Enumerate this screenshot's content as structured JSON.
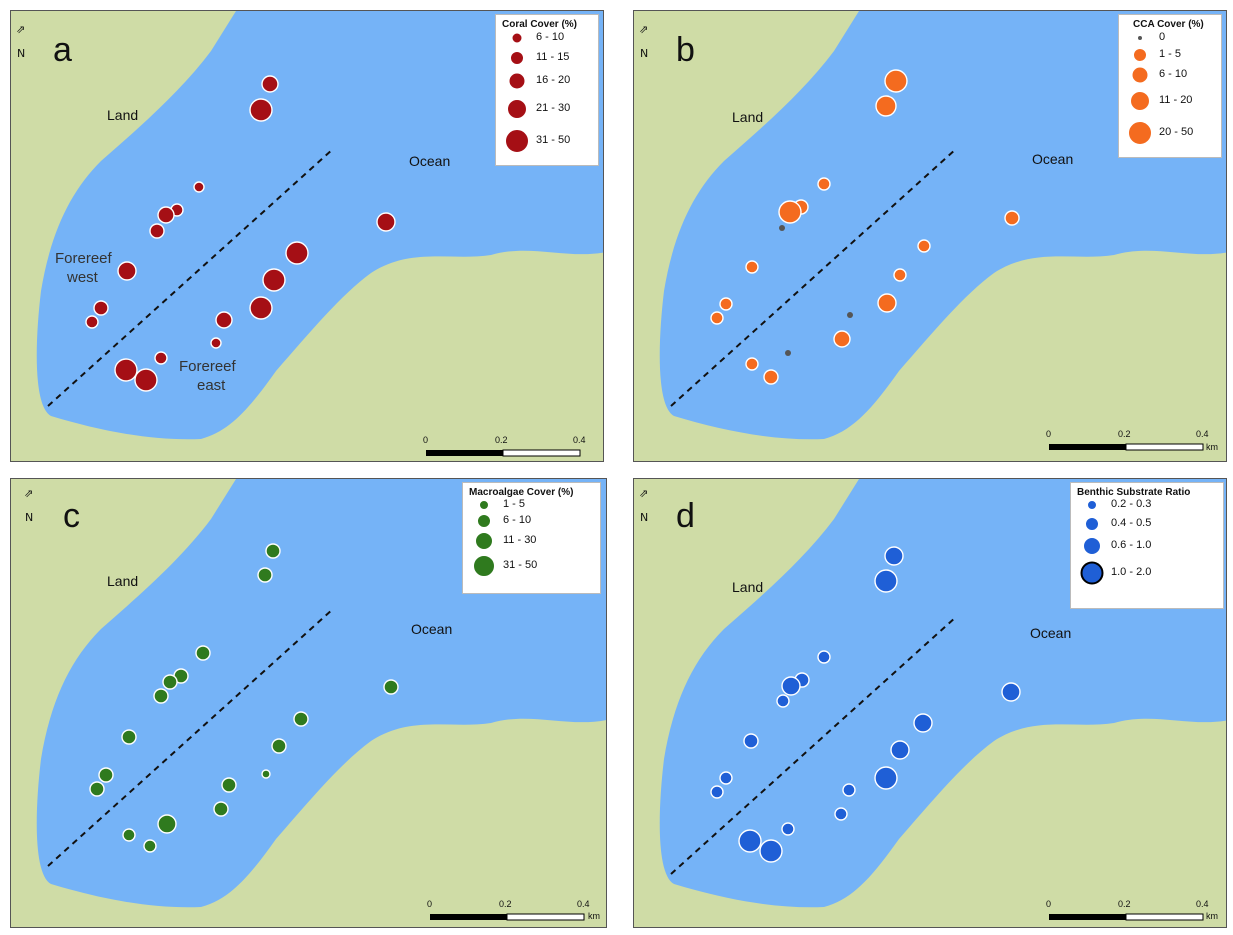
{
  "panels": [
    {
      "letter": "a",
      "land_label": "Land",
      "ocean_label": "Ocean",
      "forereef_west_label": [
        "Forereef",
        "west"
      ],
      "forereef_east_label": [
        "Forereef",
        "east"
      ],
      "legend_title": "Coral Cover (%)",
      "legend_classes": [
        "6 - 10",
        "11 - 15",
        "16 - 20",
        "21 - 30",
        "31 - 50"
      ],
      "fill": "#a50f15",
      "scale": {
        "ticks": [
          "0",
          "0.2",
          "0.4"
        ],
        "unit": ""
      }
    },
    {
      "letter": "b",
      "land_label": "Land",
      "ocean_label": "Ocean",
      "legend_title": "CCA Cover (%)",
      "legend_classes": [
        "0",
        "1 - 5",
        "6 - 10",
        "11 - 20",
        "20 - 50"
      ],
      "fill": "#f46b1f",
      "zero_fill": "#555555",
      "scale": {
        "ticks": [
          "0",
          "0.2",
          "0.4"
        ],
        "unit": "km"
      }
    },
    {
      "letter": "c",
      "land_label": "Land",
      "ocean_label": "Ocean",
      "legend_title": "Macroalgae Cover (%)",
      "legend_classes": [
        "1 - 5",
        "6 - 10",
        "11 - 30",
        "31 - 50"
      ],
      "fill": "#2f7a1e",
      "scale": {
        "ticks": [
          "0",
          "0.2",
          "0.4"
        ],
        "unit": "km"
      }
    },
    {
      "letter": "d",
      "land_label": "Land",
      "ocean_label": "Ocean",
      "legend_title": "Benthic Substrate Ratio",
      "legend_classes": [
        "0.2 - 0.3",
        "0.4 - 0.5",
        "0.6 - 1.0",
        "1.0 - 2.0"
      ],
      "fill": "#1f5fd6",
      "scale": {
        "ticks": [
          "0",
          "0.2",
          "0.4"
        ],
        "unit": "km"
      }
    }
  ],
  "colors": {
    "land": "#cfdca6",
    "ocean": "#75b3f7",
    "north_arrow": "#111111"
  },
  "north_letter": "N"
}
